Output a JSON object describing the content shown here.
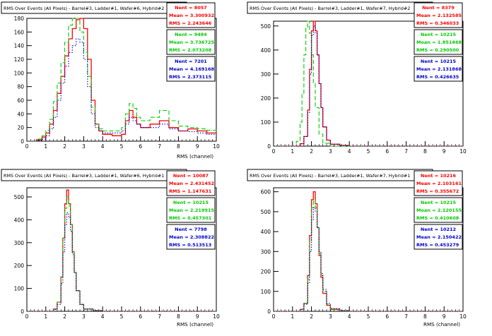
{
  "chart_data": [
    {
      "type": "line",
      "title": "RMS Over Events (All Pixels) - Barrel#3, Ladder#1, Wafer#6, Hybrid#2",
      "xlabel": "RMS (channel)",
      "ylabel": "",
      "xlim": [
        0,
        10
      ],
      "ylim": [
        0,
        180
      ],
      "yticks": [
        0,
        20,
        40,
        60,
        80,
        100,
        120,
        140,
        160,
        180
      ],
      "xticks": [
        0,
        1,
        2,
        3,
        4,
        5,
        6,
        7,
        8,
        9,
        10
      ],
      "stats": [
        {
          "color": "#ff0000",
          "nent": "Nent = 8057",
          "mean": "Mean = 3.300932",
          "rms": "RMS = 2.243646"
        },
        {
          "color": "#00cc00",
          "nent": "Nent = 9484",
          "mean": "Mean = 3.736725",
          "rms": "RMS = 2.073208"
        },
        {
          "color": "#0000cc",
          "nent": "Nent = 7201",
          "mean": "Mean = 4.169168",
          "rms": "RMS = 2.373115"
        }
      ],
      "series": [
        {
          "color": "#ff0000",
          "style": "solid",
          "x": [
            0,
            0.5,
            0.8,
            1.0,
            1.2,
            1.4,
            1.6,
            1.8,
            2.0,
            2.2,
            2.4,
            2.6,
            2.8,
            3.0,
            3.2,
            3.4,
            3.6,
            3.8,
            4.0,
            4.5,
            5.0,
            5.2,
            5.4,
            5.6,
            5.8,
            6.0,
            6.5,
            7.0,
            7.5,
            8.0,
            8.5,
            9.0,
            9.5,
            10
          ],
          "y": [
            0,
            2,
            6,
            12,
            25,
            45,
            70,
            95,
            125,
            150,
            165,
            178,
            180,
            165,
            120,
            60,
            25,
            15,
            10,
            8,
            10,
            30,
            45,
            35,
            25,
            20,
            25,
            30,
            20,
            15,
            18,
            15,
            12,
            10
          ]
        },
        {
          "color": "#00cc00",
          "style": "dashed",
          "x": [
            0,
            0.5,
            0.8,
            1.0,
            1.2,
            1.4,
            1.6,
            1.8,
            2.0,
            2.2,
            2.4,
            2.6,
            2.8,
            3.0,
            3.2,
            3.4,
            3.6,
            3.8,
            4.0,
            4.5,
            5.0,
            5.2,
            5.4,
            5.6,
            5.8,
            6.0,
            6.5,
            7.0,
            7.5,
            8.0,
            8.5,
            9.0,
            9.5,
            10
          ],
          "y": [
            0,
            3,
            8,
            16,
            32,
            58,
            85,
            115,
            145,
            170,
            182,
            180,
            160,
            130,
            95,
            50,
            25,
            18,
            15,
            15,
            20,
            40,
            55,
            48,
            35,
            30,
            35,
            45,
            30,
            22,
            20,
            18,
            16,
            15
          ]
        },
        {
          "color": "#0000cc",
          "style": "dotted",
          "x": [
            0,
            0.5,
            0.8,
            1.0,
            1.2,
            1.4,
            1.6,
            1.8,
            2.0,
            2.2,
            2.4,
            2.6,
            2.8,
            3.0,
            3.2,
            3.4,
            3.6,
            3.8,
            4.0,
            4.5,
            5.0,
            5.2,
            5.4,
            5.6,
            5.8,
            6.0,
            6.5,
            7.0,
            7.5,
            8.0,
            8.5,
            9.0,
            9.5,
            10
          ],
          "y": [
            0,
            1,
            3,
            8,
            18,
            35,
            60,
            85,
            110,
            130,
            140,
            150,
            145,
            120,
            80,
            40,
            20,
            15,
            12,
            12,
            15,
            25,
            35,
            30,
            25,
            20,
            20,
            25,
            18,
            15,
            14,
            12,
            10,
            10
          ]
        }
      ]
    },
    {
      "type": "line",
      "title": "RMS Over Events (All Pixels) - Barrel#3, Ladder#1, Wafer#7, Hybrid#2",
      "xlabel": "",
      "ylabel": "",
      "xlim": [
        0,
        10
      ],
      "ylim": [
        0,
        520
      ],
      "yticks": [
        0,
        100,
        200,
        300,
        400,
        500
      ],
      "xticks": [
        0,
        1,
        2,
        3,
        4,
        5,
        6,
        7,
        8,
        9,
        10
      ],
      "stats": [
        {
          "color": "#ff0000",
          "nent": "Nent = 8379",
          "mean": "Mean = 2.132585",
          "rms": "RMS = 0.346033"
        },
        {
          "color": "#00cc00",
          "nent": "Nent = 10215",
          "mean": "Mean = 1.851468",
          "rms": "RMS = 0.290500"
        },
        {
          "color": "#0000cc",
          "nent": "Nent = 10215",
          "mean": "Mean = 2.131868",
          "rms": "RMS = 0.426635"
        }
      ],
      "series": [
        {
          "color": "#ff0000",
          "style": "solid",
          "x": [
            0,
            1.0,
            1.4,
            1.6,
            1.8,
            1.9,
            2.0,
            2.1,
            2.2,
            2.3,
            2.4,
            2.5,
            2.6,
            2.8,
            3.0,
            3.5,
            4,
            10
          ],
          "y": [
            0,
            0,
            10,
            40,
            150,
            320,
            480,
            520,
            480,
            380,
            260,
            160,
            80,
            25,
            8,
            3,
            0,
            0
          ]
        },
        {
          "color": "#00cc00",
          "style": "dashed",
          "x": [
            0,
            1.0,
            1.2,
            1.4,
            1.5,
            1.6,
            1.7,
            1.8,
            1.9,
            2.0,
            2.1,
            2.2,
            2.4,
            2.6,
            3.0,
            10
          ],
          "y": [
            0,
            0,
            20,
            100,
            220,
            380,
            490,
            520,
            470,
            380,
            260,
            160,
            50,
            12,
            0,
            0
          ]
        },
        {
          "color": "#0000cc",
          "style": "dotted",
          "x": [
            0,
            1.0,
            1.4,
            1.6,
            1.8,
            1.9,
            2.0,
            2.1,
            2.2,
            2.3,
            2.4,
            2.5,
            2.6,
            2.8,
            3.0,
            3.5,
            4,
            10
          ],
          "y": [
            0,
            0,
            10,
            40,
            140,
            300,
            460,
            500,
            470,
            380,
            260,
            160,
            80,
            25,
            8,
            3,
            0,
            0
          ]
        }
      ]
    },
    {
      "type": "line",
      "title": "RMS Over Events (All Pixels) - Barrel#3, Ladder#1, Wafer#6, Hybrid#1",
      "xlabel": "RMS (channel)",
      "ylabel": "",
      "xlim": [
        0,
        10
      ],
      "ylim": [
        0,
        540
      ],
      "yticks": [
        0,
        100,
        200,
        300,
        400,
        500
      ],
      "xticks": [
        0,
        1,
        2,
        3,
        4,
        5,
        6,
        7,
        8,
        9,
        10
      ],
      "stats": [
        {
          "color": "#ff0000",
          "nent": "Nent = 10087",
          "mean": "Mean = 2.431452",
          "rms": "RMS = 1.147631"
        },
        {
          "color": "#00cc00",
          "nent": "Nent = 10215",
          "mean": "Mean = 2.219915",
          "rms": "RMS = 0.457301"
        },
        {
          "color": "#0000cc",
          "nent": "Nent = 7798",
          "mean": "Mean = 2.308822",
          "rms": "RMS = 0.513513"
        }
      ],
      "series": [
        {
          "color": "#ff0000",
          "style": "solid",
          "x": [
            0,
            1.0,
            1.4,
            1.6,
            1.8,
            1.9,
            2.0,
            2.1,
            2.2,
            2.3,
            2.4,
            2.5,
            2.6,
            2.8,
            3.0,
            3.5,
            4,
            10
          ],
          "y": [
            0,
            0,
            10,
            40,
            150,
            320,
            470,
            530,
            470,
            380,
            260,
            170,
            90,
            30,
            10,
            3,
            0,
            0
          ]
        },
        {
          "color": "#00cc00",
          "style": "dashed",
          "x": [
            0,
            1.0,
            1.4,
            1.6,
            1.8,
            1.9,
            2.0,
            2.1,
            2.2,
            2.3,
            2.4,
            2.5,
            2.6,
            2.8,
            3.0,
            3.5,
            4,
            10
          ],
          "y": [
            0,
            0,
            10,
            40,
            150,
            320,
            450,
            500,
            460,
            380,
            260,
            170,
            90,
            30,
            10,
            3,
            0,
            0
          ]
        },
        {
          "color": "#0000cc",
          "style": "dotted",
          "x": [
            0,
            1.0,
            1.4,
            1.6,
            1.8,
            1.9,
            2.0,
            2.1,
            2.2,
            2.3,
            2.4,
            2.5,
            2.6,
            2.8,
            3.0,
            3.5,
            4,
            10
          ],
          "y": [
            0,
            0,
            8,
            30,
            120,
            260,
            380,
            430,
            410,
            350,
            250,
            170,
            90,
            30,
            10,
            3,
            0,
            0
          ]
        }
      ]
    },
    {
      "type": "line",
      "title": "RMS Over Events (All Pixels) - Barrel#3, Ladder#1, Wafer#7, Hybrid#1",
      "xlabel": "RMS (channel)",
      "ylabel": "",
      "xlim": [
        0,
        10
      ],
      "ylim": [
        0,
        620
      ],
      "yticks": [
        0,
        100,
        200,
        300,
        400,
        500,
        600
      ],
      "xticks": [
        0,
        1,
        2,
        3,
        4,
        5,
        6,
        7,
        8,
        9,
        10
      ],
      "stats": [
        {
          "color": "#ff0000",
          "nent": "Nent = 10216",
          "mean": "Mean = 2.103161",
          "rms": "RMS = 0.355672"
        },
        {
          "color": "#00cc00",
          "nent": "Nent = 10215",
          "mean": "Mean = 2.120155",
          "rms": "RMS = 0.410608"
        },
        {
          "color": "#0000cc",
          "nent": "Nent = 10212",
          "mean": "Mean = 2.150422",
          "rms": "RMS = 0.453279"
        }
      ],
      "series": [
        {
          "color": "#ff0000",
          "style": "solid",
          "x": [
            0,
            1.0,
            1.4,
            1.6,
            1.8,
            1.9,
            2.0,
            2.1,
            2.2,
            2.3,
            2.4,
            2.5,
            2.6,
            2.8,
            3.0,
            3.5,
            4,
            10
          ],
          "y": [
            0,
            0,
            10,
            40,
            180,
            380,
            560,
            600,
            540,
            420,
            280,
            170,
            90,
            30,
            10,
            3,
            0,
            0
          ]
        },
        {
          "color": "#00cc00",
          "style": "dashed",
          "x": [
            0,
            1.0,
            1.4,
            1.6,
            1.8,
            1.9,
            2.0,
            2.1,
            2.2,
            2.3,
            2.4,
            2.5,
            2.6,
            2.8,
            3.0,
            3.5,
            4,
            10
          ],
          "y": [
            0,
            0,
            10,
            40,
            160,
            350,
            520,
            560,
            520,
            420,
            290,
            180,
            100,
            35,
            12,
            3,
            0,
            0
          ]
        },
        {
          "color": "#0000cc",
          "style": "dotted",
          "x": [
            0,
            1.0,
            1.4,
            1.6,
            1.8,
            1.9,
            2.0,
            2.1,
            2.2,
            2.3,
            2.4,
            2.5,
            2.6,
            2.8,
            3.0,
            3.5,
            4,
            10
          ],
          "y": [
            0,
            0,
            10,
            35,
            140,
            300,
            460,
            520,
            500,
            420,
            300,
            190,
            110,
            40,
            14,
            4,
            0,
            0
          ]
        }
      ]
    }
  ]
}
